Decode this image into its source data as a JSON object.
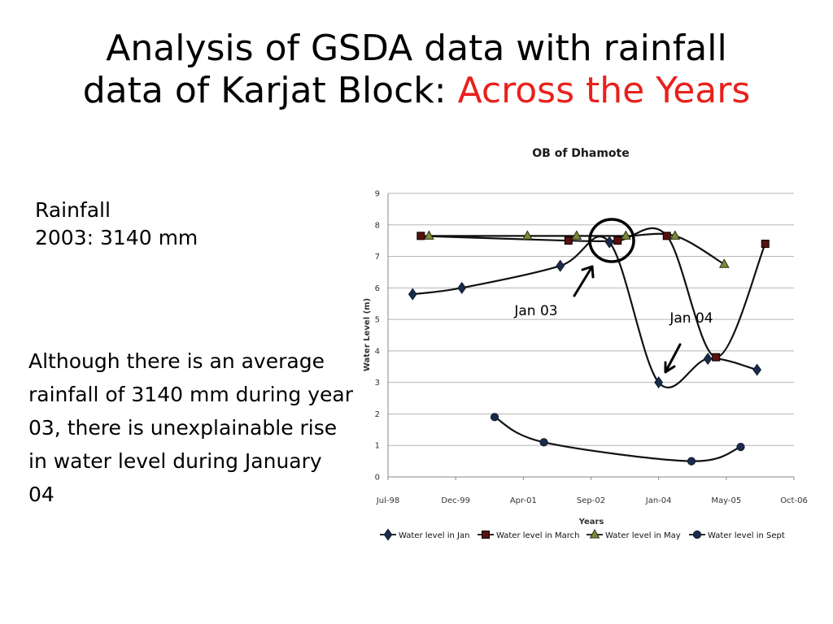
{
  "slide": {
    "title_line1": "Analysis of GSDA data with rainfall",
    "title_line2": "data of Karjat Block: ",
    "title_accent": "Across the Years",
    "accent_color": "#e8211c",
    "rainfall_label": "Rainfall",
    "rainfall_value": "2003: 3140 mm",
    "note": "Although there is an average rainfall of 3140  mm during year 03, there is unexplainable rise in water level during January 04"
  },
  "chart_data": {
    "type": "line",
    "title": "OB of Dhamote",
    "xlabel": "Years",
    "ylabel": "Water Level (m)",
    "x_ticks": [
      "Jul-98",
      "Dec-99",
      "Apr-01",
      "Sep-02",
      "Jan-04",
      "May-05",
      "Oct-06"
    ],
    "x_range": [
      "1998-07",
      "2006-10"
    ],
    "ylim": [
      0,
      9
    ],
    "y_ticks": [
      "0",
      "1",
      "2",
      "3",
      "4",
      "5",
      "6",
      "7",
      "8",
      "9"
    ],
    "grid": true,
    "legend_position": "bottom",
    "series": [
      {
        "name": "Water level in Jan",
        "marker": "diamond",
        "color": "#1a2a4a",
        "points": [
          {
            "x": "1999-01",
            "y": 5.8
          },
          {
            "x": "2000-01",
            "y": 6.0
          },
          {
            "x": "2002-01",
            "y": 6.7
          },
          {
            "x": "2003-01",
            "y": 7.45
          },
          {
            "x": "2004-01",
            "y": 3.0
          },
          {
            "x": "2005-01",
            "y": 3.75
          },
          {
            "x": "2006-01",
            "y": 3.4
          }
        ]
      },
      {
        "name": "Water level in March",
        "marker": "square",
        "color": "#5a1010",
        "points": [
          {
            "x": "1999-03",
            "y": 7.65
          },
          {
            "x": "2002-03",
            "y": 7.5
          },
          {
            "x": "2003-03",
            "y": 7.5
          },
          {
            "x": "2004-03",
            "y": 7.65
          },
          {
            "x": "2005-03",
            "y": 3.8
          },
          {
            "x": "2006-03",
            "y": 7.4
          }
        ]
      },
      {
        "name": "Water level in May",
        "marker": "triangle",
        "color": "#4a5a20",
        "points": [
          {
            "x": "1999-05",
            "y": 7.65
          },
          {
            "x": "2001-05",
            "y": 7.65
          },
          {
            "x": "2002-05",
            "y": 7.65
          },
          {
            "x": "2003-05",
            "y": 7.65
          },
          {
            "x": "2004-05",
            "y": 7.65
          },
          {
            "x": "2005-05",
            "y": 6.75
          }
        ]
      },
      {
        "name": "Water level in Sept",
        "marker": "circle",
        "color": "#1a2a4a",
        "points": [
          {
            "x": "2000-09",
            "y": 1.9
          },
          {
            "x": "2001-09",
            "y": 1.1
          },
          {
            "x": "2004-09",
            "y": 0.5
          },
          {
            "x": "2005-09",
            "y": 0.95
          }
        ]
      }
    ],
    "annotations": [
      {
        "text": "Jan 03"
      },
      {
        "text": "Jan 04"
      }
    ]
  }
}
